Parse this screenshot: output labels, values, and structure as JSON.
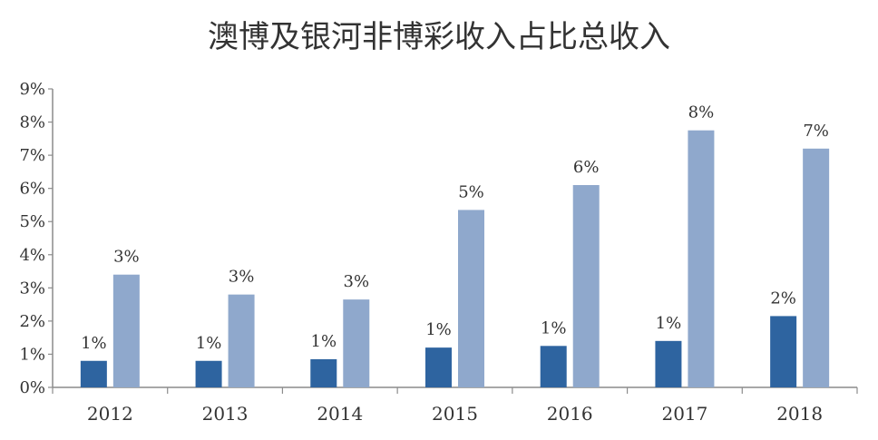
{
  "chart_data": {
    "type": "bar",
    "title": "澳博及银河非博彩收入占比总收入",
    "xlabel": "",
    "ylabel": "",
    "categories": [
      "2012",
      "2013",
      "2014",
      "2015",
      "2016",
      "2017",
      "2018"
    ],
    "ylim": [
      0,
      9
    ],
    "yticks": [
      "0%",
      "1%",
      "2%",
      "3%",
      "4%",
      "5%",
      "6%",
      "7%",
      "8%",
      "9%"
    ],
    "grid": false,
    "legend": "none",
    "series": [
      {
        "name": "series-dark",
        "color": "#2e64a0",
        "values": [
          0.8,
          0.8,
          0.85,
          1.2,
          1.25,
          1.4,
          2.15
        ],
        "labels": [
          "1%",
          "1%",
          "1%",
          "1%",
          "1%",
          "1%",
          "2%"
        ]
      },
      {
        "name": "series-light",
        "color": "#8fa8cc",
        "values": [
          3.4,
          2.8,
          2.65,
          5.35,
          6.1,
          7.75,
          7.2
        ],
        "labels": [
          "3%",
          "3%",
          "3%",
          "5%",
          "6%",
          "8%",
          "7%"
        ]
      }
    ]
  }
}
